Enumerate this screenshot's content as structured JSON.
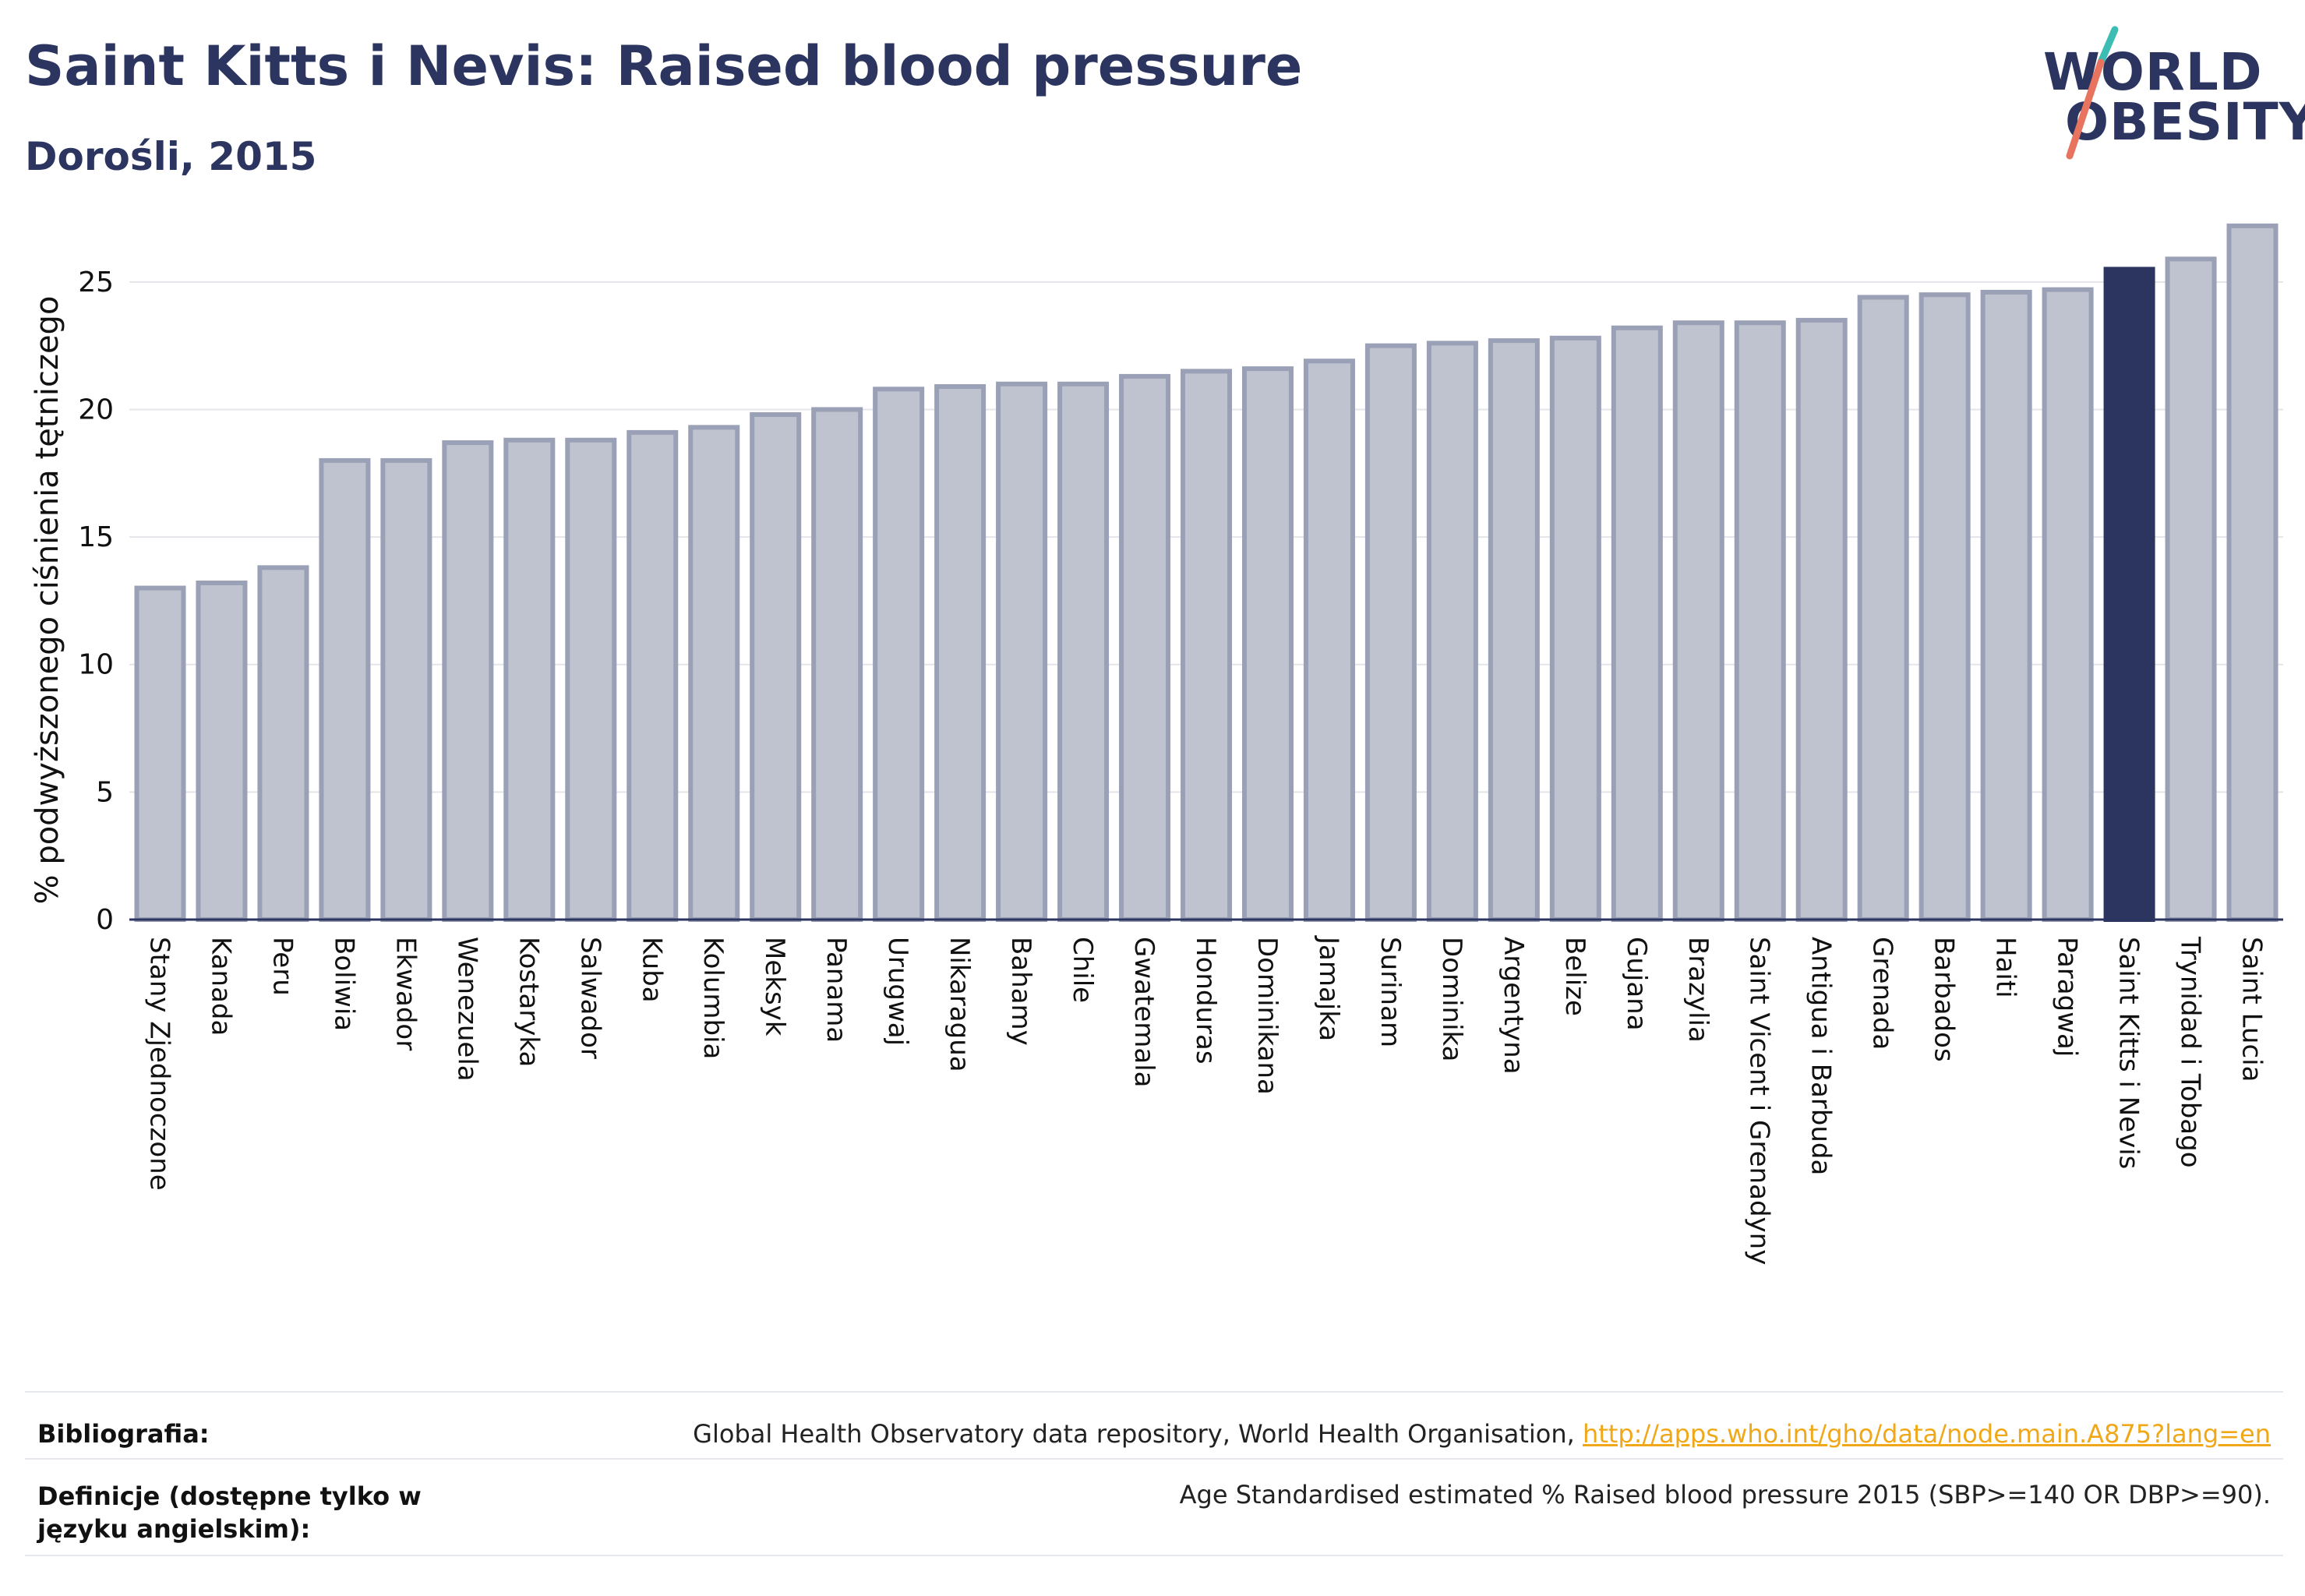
{
  "header": {
    "title": "Saint Kitts i Nevis: Raised blood pressure",
    "subtitle": "Dorośli, 2015"
  },
  "logo": {
    "line1": "WORLD",
    "line2": "OBESITY"
  },
  "colors": {
    "bar": "#bfc2cf",
    "bar_border": "#9aa0b5",
    "highlight": "#2b3560",
    "grid": "#e4e5ea",
    "axis": "#2b3560"
  },
  "chart_data": {
    "type": "bar",
    "ylabel": "% podwyższonego ciśnienia tętniczego",
    "xlabel": "",
    "ylim": [
      0,
      27.5
    ],
    "yticks": [
      0,
      5,
      10,
      15,
      20,
      25
    ],
    "grid": true,
    "highlight": "Saint Kitts i Nevis",
    "categories": [
      "Stany Zjednoczone",
      "Kanada",
      "Peru",
      "Boliwia",
      "Ekwador",
      "Wenezuela",
      "Kostaryka",
      "Salwador",
      "Kuba",
      "Kolumbia",
      "Meksyk",
      "Panama",
      "Urugwaj",
      "Nikaragua",
      "Bahamy",
      "Chile",
      "Gwatemala",
      "Honduras",
      "Dominikana",
      "Jamajka",
      "Surinam",
      "Dominika",
      "Argentyna",
      "Belize",
      "Gujana",
      "Brazylia",
      "Saint Vicent i Grenadyny",
      "Antigua i Barbuda",
      "Grenada",
      "Barbados",
      "Haiti",
      "Paragwaj",
      "Saint Kitts i Nevis",
      "Trynidad i Tobago",
      "Saint Lucia"
    ],
    "values": [
      13.0,
      13.2,
      13.8,
      18.0,
      18.0,
      18.7,
      18.8,
      18.8,
      19.1,
      19.3,
      19.8,
      20.0,
      20.8,
      20.9,
      21.0,
      21.0,
      21.3,
      21.5,
      21.6,
      21.9,
      22.5,
      22.6,
      22.7,
      22.8,
      23.2,
      23.4,
      23.4,
      23.5,
      24.4,
      24.5,
      24.6,
      24.7,
      25.5,
      25.9,
      27.2
    ]
  },
  "footer": {
    "bibliography_label": "Bibliografia:",
    "bibliography_text": "Global Health Observatory data repository, World Health Organisation, ",
    "bibliography_link": "http://apps.who.int/gho/data/node.main.A875?lang=en",
    "definitions_label": "Definicje (dostępne tylko w języku angielskim):",
    "definitions_text": "Age Standardised estimated % Raised blood pressure 2015 (SBP>=140 OR DBP>=90)."
  }
}
